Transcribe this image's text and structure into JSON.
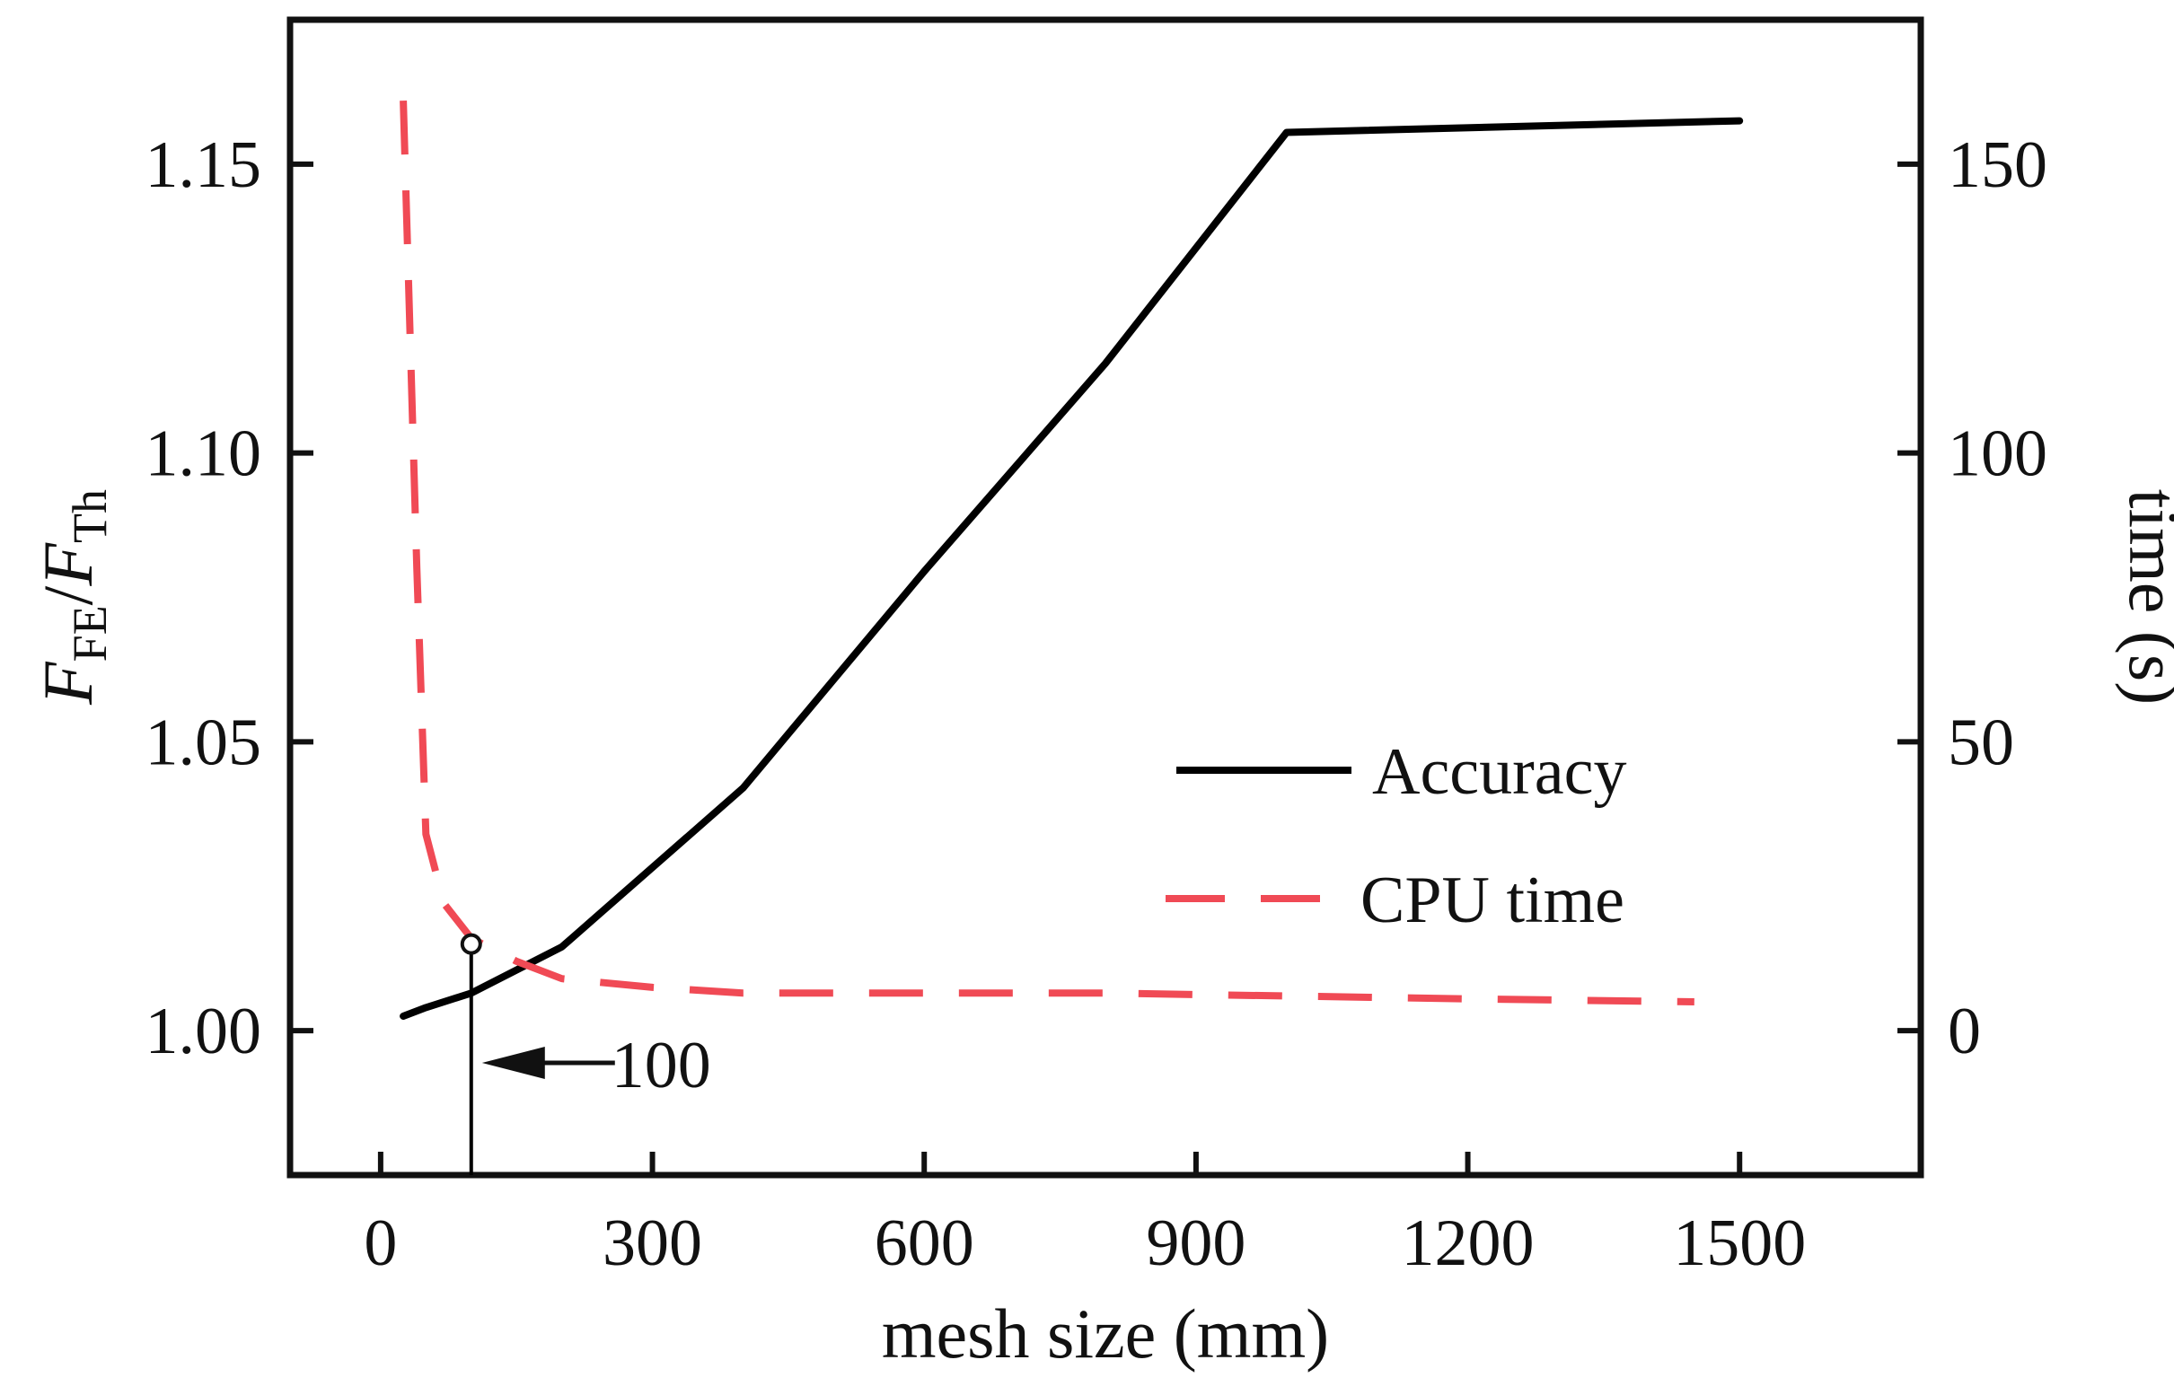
{
  "chart_data": {
    "type": "line",
    "title": "",
    "xlabel": "mesh size (mm)",
    "ylabel_left": {
      "main": "F",
      "sub1": "FE",
      "sep": "/",
      "main2": "F",
      "sub2": "Th"
    },
    "ylabel_right": "time (s)",
    "xlim": [
      -100,
      1700
    ],
    "ylim_left": [
      0.975,
      1.175
    ],
    "ylim_right": [
      -25,
      175
    ],
    "x_ticks": [
      0,
      300,
      600,
      900,
      1200,
      1500
    ],
    "x_tick_labels": [
      "0",
      "300",
      "600",
      "900",
      "1200",
      "1500"
    ],
    "y_left_ticks": [
      1.0,
      1.05,
      1.1,
      1.15
    ],
    "y_left_tick_labels": [
      "1.00",
      "1.05",
      "1.10",
      "1.15"
    ],
    "y_right_ticks": [
      0,
      50,
      100,
      150
    ],
    "y_right_tick_labels": [
      "0",
      "50",
      "100",
      "150"
    ],
    "grid": false,
    "legend_position": "center-right",
    "series": [
      {
        "name": "Accuracy",
        "axis": "left",
        "color": "#000000",
        "style": "solid",
        "x": [
          25,
          50,
          100,
          200,
          400,
          600,
          800,
          1000,
          1500
        ],
        "y": [
          1.0025,
          1.004,
          1.0065,
          1.0145,
          1.042,
          1.0795,
          1.1155,
          1.1555,
          1.1575
        ]
      },
      {
        "name": "CPU time",
        "axis": "right",
        "color": "#f04a55",
        "style": "dashed",
        "x": [
          25,
          40,
          50,
          70,
          100,
          150,
          200,
          300,
          400,
          600,
          800,
          1000,
          1200,
          1450
        ],
        "y": [
          161,
          80,
          34,
          22,
          16,
          12,
          9,
          7.5,
          6.5,
          6.5,
          6.5,
          6,
          5.5,
          5
        ]
      }
    ],
    "annotation": {
      "label": "100",
      "x": 100,
      "y_left": 1.015,
      "color": "#000000"
    }
  }
}
